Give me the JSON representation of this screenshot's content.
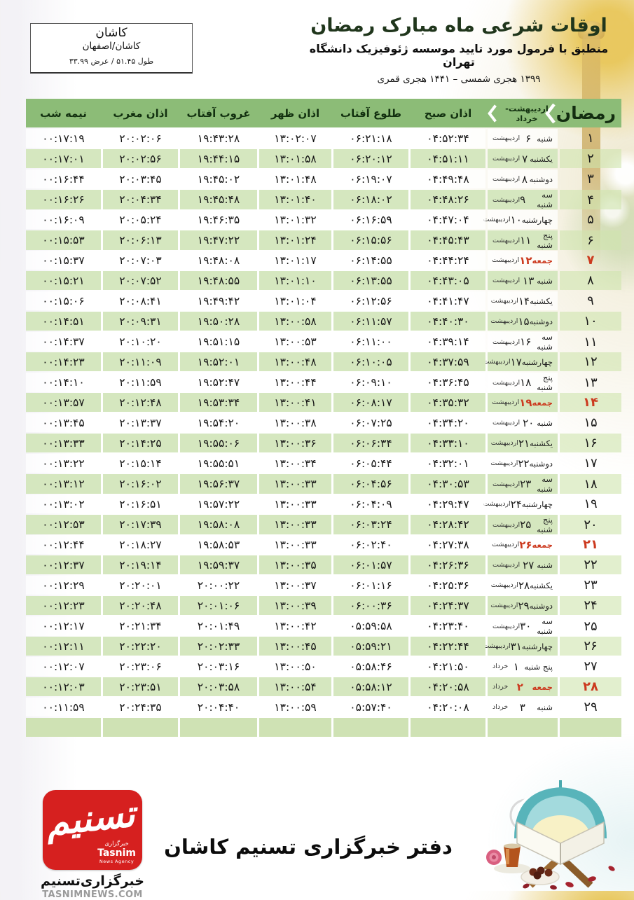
{
  "header": {
    "title": "اوقات شرعی ماه مبارک رمضان",
    "subtitle": "منطبق با فرمول مورد تایید موسسه ژئوفیزیک دانشگاه تهران",
    "years": "۱۳۹۹ هجری شمسی  –  ۱۴۴۱ هجری قمری"
  },
  "location": {
    "city": "کاشان",
    "region": "کاشان/اصفهان",
    "coords": "طول ۵۱.۴۵ / عرض ۳۳.۹۹"
  },
  "table": {
    "headers": {
      "ramadan": "رمضان",
      "month_range": "اردیبهشت-خرداد",
      "sobh": "اذان صبح",
      "tolu": "طلوع آفتاب",
      "zohr": "اذان ظهر",
      "ghorub": "غروب آفتاب",
      "maghreb": "اذان مغرب",
      "nimeshab": "نیمه شب"
    },
    "rows": [
      {
        "day": "۱",
        "weekday": "شنبه",
        "date": "۶",
        "month": "اردیبهشت",
        "friday": false,
        "sobh": "۰۴:۵۲:۳۴",
        "tolu": "۰۶:۲۱:۱۸",
        "zohr": "۱۳:۰۲:۰۷",
        "ghorub": "۱۹:۴۳:۲۸",
        "maghreb": "۲۰:۰۲:۰۶",
        "nimeshab": "۰۰:۱۷:۱۹"
      },
      {
        "day": "۲",
        "weekday": "یکشنبه",
        "date": "۷",
        "month": "اردیبهشت",
        "friday": false,
        "sobh": "۰۴:۵۱:۱۱",
        "tolu": "۰۶:۲۰:۱۲",
        "zohr": "۱۳:۰۱:۵۸",
        "ghorub": "۱۹:۴۴:۱۵",
        "maghreb": "۲۰:۰۲:۵۶",
        "nimeshab": "۰۰:۱۷:۰۱"
      },
      {
        "day": "۳",
        "weekday": "دوشنبه",
        "date": "۸",
        "month": "اردیبهشت",
        "friday": false,
        "sobh": "۰۴:۴۹:۴۸",
        "tolu": "۰۶:۱۹:۰۷",
        "zohr": "۱۳:۰۱:۴۸",
        "ghorub": "۱۹:۴۵:۰۲",
        "maghreb": "۲۰:۰۳:۴۵",
        "nimeshab": "۰۰:۱۶:۴۴"
      },
      {
        "day": "۴",
        "weekday": "سه شنبه",
        "date": "۹",
        "month": "اردیبهشت",
        "friday": false,
        "sobh": "۰۴:۴۸:۲۶",
        "tolu": "۰۶:۱۸:۰۲",
        "zohr": "۱۳:۰۱:۴۰",
        "ghorub": "۱۹:۴۵:۴۸",
        "maghreb": "۲۰:۰۴:۳۴",
        "nimeshab": "۰۰:۱۶:۲۶"
      },
      {
        "day": "۵",
        "weekday": "چهارشنبه",
        "date": "۱۰",
        "month": "اردیبهشت",
        "friday": false,
        "sobh": "۰۴:۴۷:۰۴",
        "tolu": "۰۶:۱۶:۵۹",
        "zohr": "۱۳:۰۱:۳۲",
        "ghorub": "۱۹:۴۶:۳۵",
        "maghreb": "۲۰:۰۵:۲۴",
        "nimeshab": "۰۰:۱۶:۰۹"
      },
      {
        "day": "۶",
        "weekday": "پنج شنبه",
        "date": "۱۱",
        "month": "اردیبهشت",
        "friday": false,
        "sobh": "۰۴:۴۵:۴۳",
        "tolu": "۰۶:۱۵:۵۶",
        "zohr": "۱۳:۰۱:۲۴",
        "ghorub": "۱۹:۴۷:۲۲",
        "maghreb": "۲۰:۰۶:۱۳",
        "nimeshab": "۰۰:۱۵:۵۳"
      },
      {
        "day": "۷",
        "weekday": "جمعه",
        "date": "۱۲",
        "month": "اردیبهشت",
        "friday": true,
        "sobh": "۰۴:۴۴:۲۴",
        "tolu": "۰۶:۱۴:۵۵",
        "zohr": "۱۳:۰۱:۱۷",
        "ghorub": "۱۹:۴۸:۰۸",
        "maghreb": "۲۰:۰۷:۰۳",
        "nimeshab": "۰۰:۱۵:۳۷"
      },
      {
        "day": "۸",
        "weekday": "شنبه",
        "date": "۱۳",
        "month": "اردیبهشت",
        "friday": false,
        "sobh": "۰۴:۴۳:۰۵",
        "tolu": "۰۶:۱۳:۵۵",
        "zohr": "۱۳:۰۱:۱۰",
        "ghorub": "۱۹:۴۸:۵۵",
        "maghreb": "۲۰:۰۷:۵۲",
        "nimeshab": "۰۰:۱۵:۲۱"
      },
      {
        "day": "۹",
        "weekday": "یکشنبه",
        "date": "۱۴",
        "month": "اردیبهشت",
        "friday": false,
        "sobh": "۰۴:۴۱:۴۷",
        "tolu": "۰۶:۱۲:۵۶",
        "zohr": "۱۳:۰۱:۰۴",
        "ghorub": "۱۹:۴۹:۴۲",
        "maghreb": "۲۰:۰۸:۴۱",
        "nimeshab": "۰۰:۱۵:۰۶"
      },
      {
        "day": "۱۰",
        "weekday": "دوشنبه",
        "date": "۱۵",
        "month": "اردیبهشت",
        "friday": false,
        "sobh": "۰۴:۴۰:۳۰",
        "tolu": "۰۶:۱۱:۵۷",
        "zohr": "۱۳:۰۰:۵۸",
        "ghorub": "۱۹:۵۰:۲۸",
        "maghreb": "۲۰:۰۹:۳۱",
        "nimeshab": "۰۰:۱۴:۵۱"
      },
      {
        "day": "۱۱",
        "weekday": "سه شنبه",
        "date": "۱۶",
        "month": "اردیبهشت",
        "friday": false,
        "sobh": "۰۴:۳۹:۱۴",
        "tolu": "۰۶:۱۱:۰۰",
        "zohr": "۱۳:۰۰:۵۳",
        "ghorub": "۱۹:۵۱:۱۵",
        "maghreb": "۲۰:۱۰:۲۰",
        "nimeshab": "۰۰:۱۴:۳۷"
      },
      {
        "day": "۱۲",
        "weekday": "چهارشنبه",
        "date": "۱۷",
        "month": "اردیبهشت",
        "friday": false,
        "sobh": "۰۴:۳۷:۵۹",
        "tolu": "۰۶:۱۰:۰۵",
        "zohr": "۱۳:۰۰:۴۸",
        "ghorub": "۱۹:۵۲:۰۱",
        "maghreb": "۲۰:۱۱:۰۹",
        "nimeshab": "۰۰:۱۴:۲۳"
      },
      {
        "day": "۱۳",
        "weekday": "پنج شنبه",
        "date": "۱۸",
        "month": "اردیبهشت",
        "friday": false,
        "sobh": "۰۴:۳۶:۴۵",
        "tolu": "۰۶:۰۹:۱۰",
        "zohr": "۱۳:۰۰:۴۴",
        "ghorub": "۱۹:۵۲:۴۷",
        "maghreb": "۲۰:۱۱:۵۹",
        "nimeshab": "۰۰:۱۴:۱۰"
      },
      {
        "day": "۱۴",
        "weekday": "جمعه",
        "date": "۱۹",
        "month": "اردیبهشت",
        "friday": true,
        "sobh": "۰۴:۳۵:۳۲",
        "tolu": "۰۶:۰۸:۱۷",
        "zohr": "۱۳:۰۰:۴۱",
        "ghorub": "۱۹:۵۳:۳۴",
        "maghreb": "۲۰:۱۲:۴۸",
        "nimeshab": "۰۰:۱۳:۵۷"
      },
      {
        "day": "۱۵",
        "weekday": "شنبه",
        "date": "۲۰",
        "month": "اردیبهشت",
        "friday": false,
        "sobh": "۰۴:۳۴:۲۰",
        "tolu": "۰۶:۰۷:۲۵",
        "zohr": "۱۳:۰۰:۳۸",
        "ghorub": "۱۹:۵۴:۲۰",
        "maghreb": "۲۰:۱۳:۳۷",
        "nimeshab": "۰۰:۱۳:۴۵"
      },
      {
        "day": "۱۶",
        "weekday": "یکشنبه",
        "date": "۲۱",
        "month": "اردیبهشت",
        "friday": false,
        "sobh": "۰۴:۳۳:۱۰",
        "tolu": "۰۶:۰۶:۳۴",
        "zohr": "۱۳:۰۰:۳۶",
        "ghorub": "۱۹:۵۵:۰۶",
        "maghreb": "۲۰:۱۴:۲۵",
        "nimeshab": "۰۰:۱۳:۳۳"
      },
      {
        "day": "۱۷",
        "weekday": "دوشنبه",
        "date": "۲۲",
        "month": "اردیبهشت",
        "friday": false,
        "sobh": "۰۴:۳۲:۰۱",
        "tolu": "۰۶:۰۵:۴۴",
        "zohr": "۱۳:۰۰:۳۴",
        "ghorub": "۱۹:۵۵:۵۱",
        "maghreb": "۲۰:۱۵:۱۴",
        "nimeshab": "۰۰:۱۳:۲۲"
      },
      {
        "day": "۱۸",
        "weekday": "سه شنبه",
        "date": "۲۳",
        "month": "اردیبهشت",
        "friday": false,
        "sobh": "۰۴:۳۰:۵۳",
        "tolu": "۰۶:۰۴:۵۶",
        "zohr": "۱۳:۰۰:۳۳",
        "ghorub": "۱۹:۵۶:۳۷",
        "maghreb": "۲۰:۱۶:۰۲",
        "nimeshab": "۰۰:۱۳:۱۲"
      },
      {
        "day": "۱۹",
        "weekday": "چهارشنبه",
        "date": "۲۴",
        "month": "اردیبهشت",
        "friday": false,
        "sobh": "۰۴:۲۹:۴۷",
        "tolu": "۰۶:۰۴:۰۹",
        "zohr": "۱۳:۰۰:۳۳",
        "ghorub": "۱۹:۵۷:۲۲",
        "maghreb": "۲۰:۱۶:۵۱",
        "nimeshab": "۰۰:۱۳:۰۲"
      },
      {
        "day": "۲۰",
        "weekday": "پنج شنبه",
        "date": "۲۵",
        "month": "اردیبهشت",
        "friday": false,
        "sobh": "۰۴:۲۸:۴۲",
        "tolu": "۰۶:۰۳:۲۴",
        "zohr": "۱۳:۰۰:۳۳",
        "ghorub": "۱۹:۵۸:۰۸",
        "maghreb": "۲۰:۱۷:۳۹",
        "nimeshab": "۰۰:۱۲:۵۳"
      },
      {
        "day": "۲۱",
        "weekday": "جمعه",
        "date": "۲۶",
        "month": "اردیبهشت",
        "friday": true,
        "sobh": "۰۴:۲۷:۳۸",
        "tolu": "۰۶:۰۲:۴۰",
        "zohr": "۱۳:۰۰:۳۳",
        "ghorub": "۱۹:۵۸:۵۳",
        "maghreb": "۲۰:۱۸:۲۷",
        "nimeshab": "۰۰:۱۲:۴۴"
      },
      {
        "day": "۲۲",
        "weekday": "شنبه",
        "date": "۲۷",
        "month": "اردیبهشت",
        "friday": false,
        "sobh": "۰۴:۲۶:۳۶",
        "tolu": "۰۶:۰۱:۵۷",
        "zohr": "۱۳:۰۰:۳۵",
        "ghorub": "۱۹:۵۹:۳۷",
        "maghreb": "۲۰:۱۹:۱۴",
        "nimeshab": "۰۰:۱۲:۳۷"
      },
      {
        "day": "۲۳",
        "weekday": "یکشنبه",
        "date": "۲۸",
        "month": "اردیبهشت",
        "friday": false,
        "sobh": "۰۴:۲۵:۳۶",
        "tolu": "۰۶:۰۱:۱۶",
        "zohr": "۱۳:۰۰:۳۷",
        "ghorub": "۲۰:۰۰:۲۲",
        "maghreb": "۲۰:۲۰:۰۱",
        "nimeshab": "۰۰:۱۲:۲۹"
      },
      {
        "day": "۲۴",
        "weekday": "دوشنبه",
        "date": "۲۹",
        "month": "اردیبهشت",
        "friday": false,
        "sobh": "۰۴:۲۴:۳۷",
        "tolu": "۰۶:۰۰:۳۶",
        "zohr": "۱۳:۰۰:۳۹",
        "ghorub": "۲۰:۰۱:۰۶",
        "maghreb": "۲۰:۲۰:۴۸",
        "nimeshab": "۰۰:۱۲:۲۳"
      },
      {
        "day": "۲۵",
        "weekday": "سه شنبه",
        "date": "۳۰",
        "month": "اردیبهشت",
        "friday": false,
        "sobh": "۰۴:۲۳:۴۰",
        "tolu": "۰۵:۵۹:۵۸",
        "zohr": "۱۳:۰۰:۴۲",
        "ghorub": "۲۰:۰۱:۴۹",
        "maghreb": "۲۰:۲۱:۳۴",
        "nimeshab": "۰۰:۱۲:۱۷"
      },
      {
        "day": "۲۶",
        "weekday": "چهارشنبه",
        "date": "۳۱",
        "month": "اردیبهشت",
        "friday": false,
        "sobh": "۰۴:۲۲:۴۴",
        "tolu": "۰۵:۵۹:۲۱",
        "zohr": "۱۳:۰۰:۴۵",
        "ghorub": "۲۰:۰۲:۳۳",
        "maghreb": "۲۰:۲۲:۲۰",
        "nimeshab": "۰۰:۱۲:۱۱"
      },
      {
        "day": "۲۷",
        "weekday": "پنج شنبه",
        "date": "۱",
        "month": "خرداد",
        "friday": false,
        "sobh": "۰۴:۲۱:۵۰",
        "tolu": "۰۵:۵۸:۴۶",
        "zohr": "۱۳:۰۰:۵۰",
        "ghorub": "۲۰:۰۳:۱۶",
        "maghreb": "۲۰:۲۳:۰۶",
        "nimeshab": "۰۰:۱۲:۰۷"
      },
      {
        "day": "۲۸",
        "weekday": "جمعه",
        "date": "۲",
        "month": "خرداد",
        "friday": true,
        "sobh": "۰۴:۲۰:۵۸",
        "tolu": "۰۵:۵۸:۱۲",
        "zohr": "۱۳:۰۰:۵۴",
        "ghorub": "۲۰:۰۳:۵۸",
        "maghreb": "۲۰:۲۳:۵۱",
        "nimeshab": "۰۰:۱۲:۰۳"
      },
      {
        "day": "۲۹",
        "weekday": "شنبه",
        "date": "۳",
        "month": "خرداد",
        "friday": false,
        "sobh": "۰۴:۲۰:۰۸",
        "tolu": "۰۵:۵۷:۴۰",
        "zohr": "۱۳:۰۰:۵۹",
        "ghorub": "۲۰:۰۴:۴۰",
        "maghreb": "۲۰:۲۴:۳۵",
        "nimeshab": "۰۰:۱۱:۵۹"
      }
    ]
  },
  "footer": {
    "office_title": "دفتر خبرگزاری تسنیم کاشان",
    "logo": {
      "calligraphy": "تسنیم",
      "mini_fa": "خبرگزاری",
      "mini_en": "Tasnim",
      "mini_sub": "News Agency",
      "agency_fa": "خبرگزاری‌تسنیم",
      "site": "TASNIMNEWS.COM"
    }
  },
  "colors": {
    "header_green": "#8cbc77",
    "row_green": "#d5e7bf",
    "friday_red": "#cc3a1f",
    "logo_red": "#d6201f",
    "title_dark_green": "#20361c",
    "dome_gold": "#e8c658"
  }
}
